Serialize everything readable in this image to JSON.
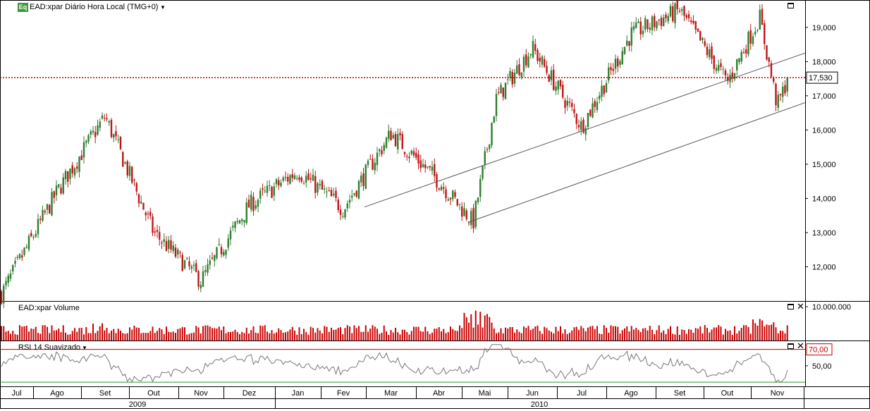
{
  "header": {
    "badge": "Eq",
    "title": "EAD:xpar Diário Hora Local (TMG+0)",
    "dropdown_icon": "caret-down-icon"
  },
  "volume_panel": {
    "title": "EAD:xpar Volume"
  },
  "rsi_panel": {
    "title": "RSI 14 Suavizado"
  },
  "colors": {
    "up": "#2f7d2f",
    "down": "#c01515",
    "price_line": "#c00000",
    "volume": "#cc0000",
    "rsi_line": "#777777",
    "rsi_upper": "#c00000",
    "rsi_lower": "#2a9a2a",
    "trendline": "#555555",
    "badge": "#3a9a3a"
  },
  "chart_data": [
    {
      "type": "candlestick",
      "title": "EAD:xpar Diário Hora Local (TMG+0)",
      "yticks": [
        "12,000",
        "13,000",
        "14,000",
        "15,000",
        "16,000",
        "17,000",
        "18,000",
        "19,000"
      ],
      "ylim": [
        11.0,
        19.8
      ],
      "current_price": 17.53,
      "current_price_label": "17,530",
      "x_months": [
        "Jul",
        "Ago",
        "Set",
        "Out",
        "Nov",
        "Dez",
        "Jan",
        "Fev",
        "Mar",
        "Abr",
        "Mai",
        "Jun",
        "Jul",
        "Ago",
        "Set",
        "Out",
        "Nov"
      ],
      "years": [
        "2009",
        "2010"
      ],
      "key_closes": [
        {
          "month": "Jul 2009",
          "value": 11.2
        },
        {
          "month": "Ago 2009",
          "value": 14.2
        },
        {
          "month": "Set 2009",
          "value": 16.4
        },
        {
          "month": "Out 2009",
          "value": 13.0
        },
        {
          "month": "Nov 2009",
          "value": 11.6
        },
        {
          "month": "Dez 2009",
          "value": 13.8
        },
        {
          "month": "Jan 2010",
          "value": 14.8
        },
        {
          "month": "Fev 2010",
          "value": 13.7
        },
        {
          "month": "Mar 2010",
          "value": 15.9
        },
        {
          "month": "Abr 2010",
          "value": 14.5
        },
        {
          "month": "Mai 2010",
          "value": 13.3
        },
        {
          "month": "Mai 2010",
          "value": 16.9
        },
        {
          "month": "Jun 2010",
          "value": 18.4
        },
        {
          "month": "Jul 2010",
          "value": 16.1
        },
        {
          "month": "Ago 2010",
          "value": 18.8
        },
        {
          "month": "Set 2010",
          "value": 19.5
        },
        {
          "month": "Out 2010",
          "value": 17.4
        },
        {
          "month": "Nov 2010",
          "value": 19.3
        },
        {
          "month": "Nov 2010",
          "value": 16.7
        },
        {
          "month": "Nov 2010",
          "value": 17.53
        }
      ],
      "trendlines": [
        {
          "start": {
            "month": "Mar 2010",
            "value": 13.75
          },
          "end": {
            "month": "Nov 2010",
            "value": 18.25
          }
        },
        {
          "start": {
            "month": "Mai 2010",
            "value": 13.3
          },
          "end": {
            "month": "Nov 2010",
            "value": 16.8
          }
        }
      ],
      "legend": "none"
    },
    {
      "type": "bar",
      "title": "EAD:xpar Volume",
      "yticks": [
        "10.000.000"
      ],
      "note": "daily volume bars, peak near 10,000,000 in Mai 2010"
    },
    {
      "type": "line",
      "title": "RSI 14 Suavizado",
      "yticks": [
        "50,00"
      ],
      "upper_band_label": "70,00",
      "upper_band": 70,
      "lower_band": 30,
      "ylim": [
        25,
        80
      ]
    }
  ]
}
